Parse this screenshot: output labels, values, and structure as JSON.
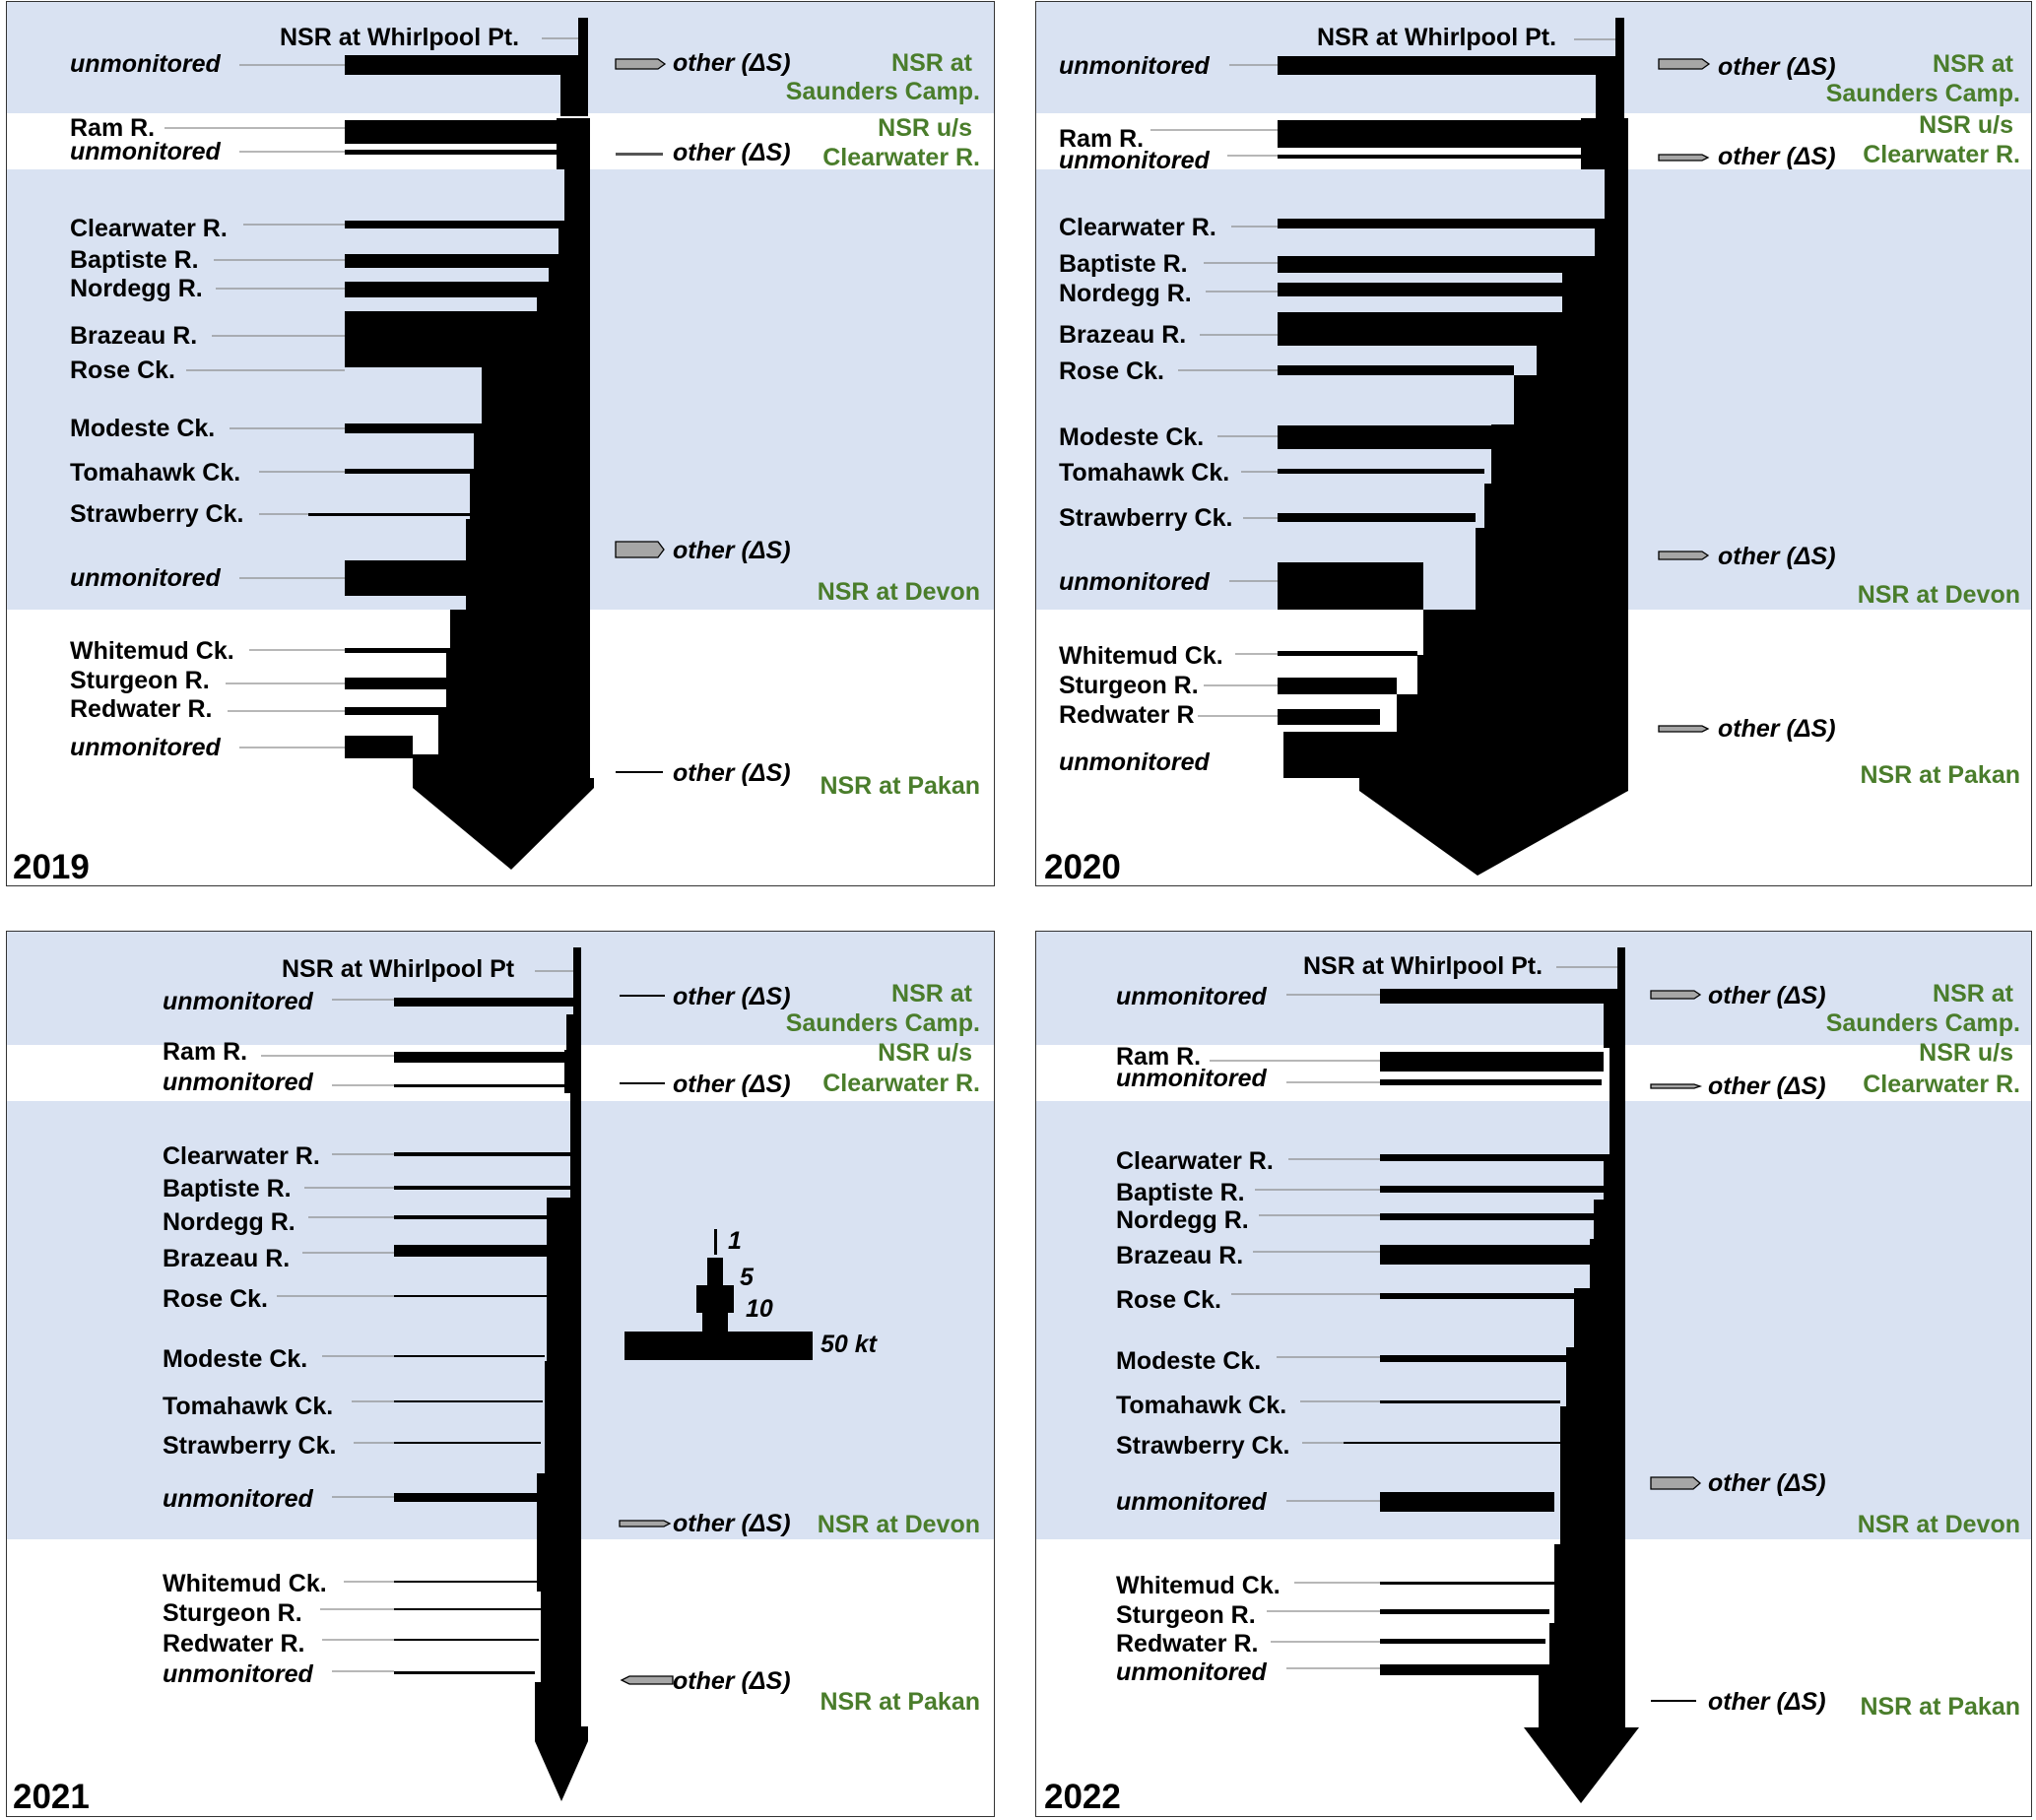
{
  "panels": [
    {
      "year": "2019",
      "stations": {
        "whirlpool": "NSR at Whirlpool Pt.",
        "saunders_1": "NSR at",
        "saunders_2": "Saunders Camp.",
        "us_clearwater_1": "NSR u/s",
        "us_clearwater_2": "Clearwater R.",
        "devon": "NSR at Devon",
        "pakan": "NSR at Pakan"
      },
      "tributaries": [
        "unmonitored",
        "Ram R.",
        "unmonitored",
        "Clearwater R.",
        "Baptiste R.",
        "Nordegg R.",
        "Brazeau R.",
        "Rose Ck.",
        "Modeste Ck.",
        "Tomahawk Ck.",
        "Strawberry Ck.",
        "unmonitored",
        "Whitemud Ck.",
        "Sturgeon R.",
        "Redwater R.",
        "unmonitored"
      ],
      "other": [
        "other (ΔS)",
        "other (ΔS)",
        "other (ΔS)",
        "other (ΔS)"
      ]
    },
    {
      "year": "2020",
      "stations": {
        "whirlpool": "NSR at Whirlpool Pt.",
        "saunders_1": "NSR at",
        "saunders_2": "Saunders Camp.",
        "us_clearwater_1": "NSR u/s",
        "us_clearwater_2": "Clearwater R.",
        "devon": "NSR at Devon",
        "pakan": "NSR at Pakan"
      },
      "tributaries": [
        "unmonitored",
        "Ram R.",
        "unmonitored",
        "Clearwater R.",
        "Baptiste R.",
        "Nordegg R.",
        "Brazeau R.",
        "Rose Ck.",
        "Modeste Ck.",
        "Tomahawk Ck.",
        "Strawberry Ck.",
        "unmonitored",
        "Whitemud Ck.",
        "Sturgeon R.",
        "Redwater R",
        "unmonitored"
      ],
      "other": [
        "other (ΔS)",
        "other (ΔS)",
        "other (ΔS)",
        "other (ΔS)"
      ]
    },
    {
      "year": "2021",
      "stations": {
        "whirlpool": "NSR at Whirlpool Pt",
        "saunders_1": "NSR at",
        "saunders_2": "Saunders Camp.",
        "us_clearwater_1": "NSR u/s",
        "us_clearwater_2": "Clearwater R.",
        "devon": "NSR at Devon",
        "pakan": "NSR at Pakan"
      },
      "tributaries": [
        "unmonitored",
        "Ram R.",
        "unmonitored",
        "Clearwater R.",
        "Baptiste R.",
        "Nordegg R.",
        "Brazeau R.",
        "Rose Ck.",
        "Modeste Ck.",
        "Tomahawk Ck.",
        "Strawberry Ck.",
        "unmonitored",
        "Whitemud Ck.",
        "Sturgeon R.",
        "Redwater R.",
        "unmonitored"
      ],
      "other": [
        "other (ΔS)",
        "other (ΔS)",
        "other (ΔS)",
        "other (ΔS)"
      ],
      "scale": {
        "s1": "1",
        "s5": "5",
        "s10": "10",
        "s50": "50 kt"
      }
    },
    {
      "year": "2022",
      "stations": {
        "whirlpool": "NSR at Whirlpool Pt.",
        "saunders_1": "NSR at",
        "saunders_2": "Saunders Camp.",
        "us_clearwater_1": "NSR u/s",
        "us_clearwater_2": "Clearwater R.",
        "devon": "NSR at Devon",
        "pakan": "NSR at Pakan"
      },
      "tributaries": [
        "unmonitored",
        "Ram R.",
        "unmonitored",
        "Clearwater R.",
        "Baptiste R.",
        "Nordegg R.",
        "Brazeau R.",
        "Rose Ck.",
        "Modeste Ck.",
        "Tomahawk Ck.",
        "Strawberry Ck.",
        "unmonitored",
        "Whitemud Ck.",
        "Sturgeon R.",
        "Redwater R.",
        "unmonitored"
      ],
      "other": [
        "other (ΔS)",
        "other (ΔS)",
        "other (ΔS)",
        "other (ΔS)"
      ]
    }
  ]
}
